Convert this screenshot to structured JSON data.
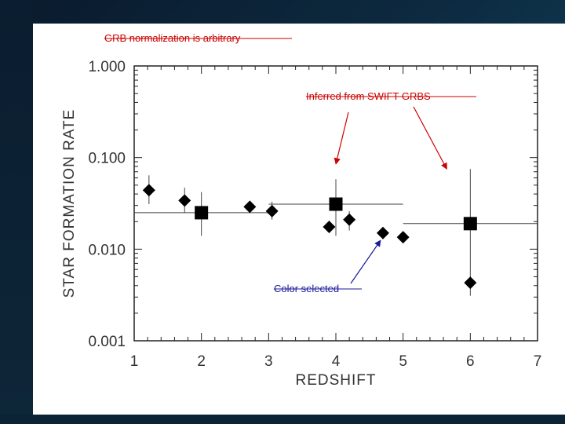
{
  "chart_data": {
    "type": "scatter",
    "xlabel": "REDSHIFT",
    "ylabel": "STAR FORMATION RATE",
    "xlim": [
      1,
      7
    ],
    "ylim": [
      0.001,
      1.0
    ],
    "yscale": "log",
    "grid": false,
    "x_ticks": [
      "1",
      "2",
      "3",
      "4",
      "5",
      "6",
      "7"
    ],
    "y_ticks": [
      "0.001",
      "0.010",
      "0.100",
      "1.000"
    ],
    "series": [
      {
        "marker": "diamond",
        "color": "#000000",
        "points": [
          {
            "x": 1.22,
            "y": 0.044,
            "ylo": 0.031,
            "yhi": 0.064
          },
          {
            "x": 1.75,
            "y": 0.034,
            "ylo": 0.025,
            "yhi": 0.047
          },
          {
            "x": 2.72,
            "y": 0.029,
            "ylo": 0.026,
            "yhi": 0.032
          },
          {
            "x": 3.05,
            "y": 0.026,
            "ylo": 0.021,
            "yhi": 0.033
          },
          {
            "x": 3.9,
            "y": 0.0175,
            "ylo": 0.0175,
            "yhi": 0.0175
          },
          {
            "x": 4.2,
            "y": 0.021,
            "ylo": 0.016,
            "yhi": 0.026
          },
          {
            "x": 4.7,
            "y": 0.015,
            "ylo": 0.015,
            "yhi": 0.015
          },
          {
            "x": 5.0,
            "y": 0.0135,
            "ylo": 0.0135,
            "yhi": 0.0135
          },
          {
            "x": 6.0,
            "y": 0.0043,
            "ylo": 0.0031,
            "yhi": 0.0043
          }
        ]
      },
      {
        "marker": "square",
        "color": "#000000",
        "points": [
          {
            "x": 2.0,
            "y": 0.025,
            "ylo": 0.014,
            "yhi": 0.042,
            "xlo": 1.0,
            "xhi": 3.0
          },
          {
            "x": 4.0,
            "y": 0.031,
            "ylo": 0.014,
            "yhi": 0.058,
            "xlo": 3.0,
            "xhi": 5.0
          },
          {
            "x": 6.0,
            "y": 0.019,
            "ylo": 0.0043,
            "yhi": 0.075,
            "xlo": 5.0,
            "xhi": 7.0
          }
        ]
      }
    ],
    "annotations": [
      {
        "text": "GRB normalization is arbitrary",
        "color": "#cc0000"
      },
      {
        "text": "Inferred from SWIFT GRBS",
        "color": "#cc0000",
        "arrows_to": [
          {
            "x": 4.0,
            "y": 0.085
          },
          {
            "x": 5.65,
            "y": 0.075
          }
        ]
      },
      {
        "text": "Color selected",
        "color": "#1a1a99",
        "arrows_to": [
          {
            "x": 4.7,
            "y": 0.0135
          }
        ]
      }
    ]
  }
}
